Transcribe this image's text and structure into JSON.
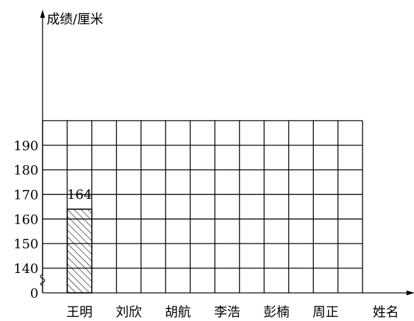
{
  "chart_data": {
    "type": "bar",
    "ylabel": "成绩/厘米",
    "xlabel": "姓名",
    "categories": [
      "王明",
      "刘欣",
      "胡航",
      "李浩",
      "彭楠",
      "周正"
    ],
    "values": [
      164,
      null,
      null,
      null,
      null,
      null
    ],
    "data_labels": [
      "164",
      "",
      "",
      "",
      "",
      ""
    ],
    "y_ticks": [
      "190",
      "180",
      "170",
      "160",
      "150",
      "140",
      "0"
    ],
    "y_tick_values": [
      190,
      180,
      170,
      160,
      150,
      140
    ],
    "ylim": [
      140,
      200
    ],
    "axis_break": true,
    "grid": true,
    "bar_fill": "hatched",
    "line_color": "#000000"
  }
}
